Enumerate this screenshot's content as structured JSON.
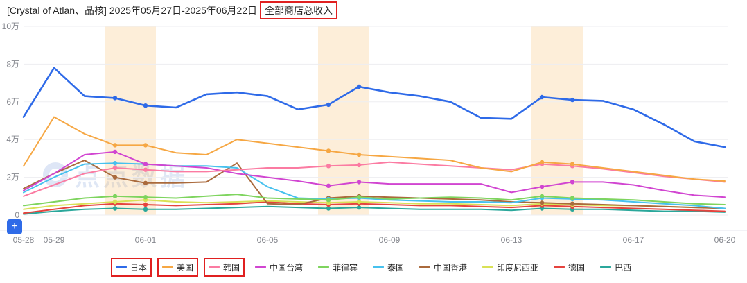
{
  "header": {
    "title_prefix": "[Crystal of Atlan、晶核] 2025年05月27日-2025年06月22日",
    "metric": "全部商店总收入"
  },
  "controls": {
    "add_button_label": "+"
  },
  "watermark": {
    "text": "点点数据"
  },
  "annotations": {
    "red_boxed_title_metric": "全部商店总收入",
    "red_boxed_legend_items": [
      "日本",
      "美国",
      "韩国"
    ],
    "box_color": "#e02020"
  },
  "chart_data": {
    "type": "line",
    "title": "全部商店总收入",
    "y_unit": "万",
    "values_unit_note": "values are in units of 万 (10,000)",
    "ylim": [
      0,
      10
    ],
    "grid": true,
    "legend_position": "bottom",
    "band_color": "#f5b253",
    "x": [
      "05-28",
      "05-29",
      "05-30",
      "05-31",
      "06-01",
      "06-02",
      "06-03",
      "06-04",
      "06-05",
      "06-06",
      "06-07",
      "06-08",
      "06-09",
      "06-10",
      "06-11",
      "06-12",
      "06-13",
      "06-14",
      "06-15",
      "06-16",
      "06-17",
      "06-18",
      "06-19",
      "06-20"
    ],
    "x_tick_labels": [
      "05-28",
      "05-29",
      "06-01",
      "06-05",
      "06-09",
      "06-13",
      "06-17",
      "06-20"
    ],
    "y_ticks": [
      {
        "value": 0,
        "label": "0"
      },
      {
        "value": 2,
        "label": "2万"
      },
      {
        "value": 4,
        "label": "4万"
      },
      {
        "value": 6,
        "label": "6万"
      },
      {
        "value": 8,
        "label": "8万"
      },
      {
        "value": 10,
        "label": "10万"
      }
    ],
    "weekend_bands": [
      [
        "05-31",
        "06-01"
      ],
      [
        "06-07",
        "06-08"
      ],
      [
        "06-14",
        "06-15"
      ]
    ],
    "dot_dates": [
      "05-31",
      "06-01",
      "06-07",
      "06-08",
      "06-14",
      "06-15"
    ],
    "series": [
      {
        "id": "japan",
        "name": "日本",
        "color": "#2e6ae8",
        "boxed": true,
        "values": [
          5.2,
          7.8,
          6.3,
          6.2,
          5.8,
          5.7,
          6.4,
          6.5,
          6.3,
          5.6,
          5.85,
          6.8,
          6.5,
          6.3,
          6.0,
          5.15,
          5.1,
          6.25,
          6.1,
          6.05,
          5.6,
          4.8,
          3.9,
          3.6
        ]
      },
      {
        "id": "usa",
        "name": "美国",
        "color": "#f6a743",
        "boxed": true,
        "values": [
          2.6,
          5.2,
          4.3,
          3.7,
          3.7,
          3.3,
          3.2,
          4.0,
          3.8,
          3.6,
          3.4,
          3.2,
          3.1,
          3.0,
          2.9,
          2.5,
          2.3,
          2.8,
          2.7,
          2.5,
          2.3,
          2.1,
          1.9,
          1.8
        ]
      },
      {
        "id": "korea",
        "name": "韩国",
        "color": "#fb7ba2",
        "boxed": true,
        "values": [
          1.0,
          1.6,
          2.2,
          2.5,
          2.4,
          2.3,
          2.3,
          2.4,
          2.5,
          2.5,
          2.6,
          2.65,
          2.8,
          2.7,
          2.6,
          2.5,
          2.4,
          2.7,
          2.6,
          2.45,
          2.25,
          2.05,
          1.9,
          1.75
        ]
      },
      {
        "id": "taiwan",
        "name": "中国台湾",
        "color": "#d145d1",
        "boxed": false,
        "values": [
          1.3,
          2.2,
          3.2,
          3.35,
          2.7,
          2.6,
          2.5,
          2.2,
          2.0,
          1.8,
          1.55,
          1.75,
          1.65,
          1.65,
          1.65,
          1.65,
          1.2,
          1.5,
          1.75,
          1.75,
          1.6,
          1.3,
          1.05,
          0.95
        ]
      },
      {
        "id": "philippines",
        "name": "菲律宾",
        "color": "#7ed45e",
        "boxed": false,
        "values": [
          0.5,
          0.7,
          0.9,
          1.0,
          0.95,
          0.9,
          1.0,
          1.1,
          0.9,
          0.85,
          0.8,
          0.95,
          0.85,
          0.9,
          0.95,
          0.9,
          0.8,
          1.0,
          0.9,
          0.85,
          0.8,
          0.7,
          0.6,
          0.55
        ]
      },
      {
        "id": "thailand",
        "name": "泰国",
        "color": "#47c1ee",
        "boxed": false,
        "values": [
          1.2,
          2.0,
          2.7,
          2.75,
          2.7,
          2.6,
          2.6,
          2.5,
          1.5,
          0.9,
          0.85,
          0.9,
          0.8,
          0.75,
          0.7,
          0.7,
          0.65,
          0.9,
          0.85,
          0.8,
          0.7,
          0.6,
          0.5,
          0.35
        ]
      },
      {
        "id": "hongkong",
        "name": "中国香港",
        "color": "#aa6a3c",
        "boxed": false,
        "values": [
          1.4,
          2.2,
          2.9,
          2.0,
          1.7,
          1.7,
          1.75,
          2.75,
          0.6,
          0.55,
          0.9,
          1.0,
          0.95,
          0.9,
          0.85,
          0.8,
          0.7,
          0.65,
          0.6,
          0.55,
          0.5,
          0.45,
          0.4,
          0.35
        ]
      },
      {
        "id": "indonesia",
        "name": "印度尼西亚",
        "color": "#d9e156",
        "boxed": false,
        "values": [
          0.3,
          0.5,
          0.6,
          0.7,
          0.8,
          0.7,
          0.65,
          0.7,
          0.75,
          0.7,
          0.65,
          0.7,
          0.65,
          0.6,
          0.6,
          0.55,
          0.5,
          0.6,
          0.55,
          0.5,
          0.5,
          0.45,
          0.4,
          0.35
        ]
      },
      {
        "id": "germany",
        "name": "德国",
        "color": "#e5433e",
        "boxed": false,
        "values": [
          0.1,
          0.3,
          0.5,
          0.6,
          0.55,
          0.5,
          0.55,
          0.6,
          0.7,
          0.6,
          0.55,
          0.6,
          0.55,
          0.5,
          0.5,
          0.45,
          0.4,
          0.5,
          0.45,
          0.4,
          0.35,
          0.3,
          0.25,
          0.2
        ]
      },
      {
        "id": "brazil",
        "name": "巴西",
        "color": "#2aa79b",
        "boxed": false,
        "values": [
          0.05,
          0.2,
          0.3,
          0.35,
          0.3,
          0.3,
          0.35,
          0.4,
          0.45,
          0.4,
          0.35,
          0.4,
          0.35,
          0.3,
          0.3,
          0.3,
          0.25,
          0.35,
          0.3,
          0.3,
          0.25,
          0.2,
          0.2,
          0.15
        ]
      }
    ]
  }
}
